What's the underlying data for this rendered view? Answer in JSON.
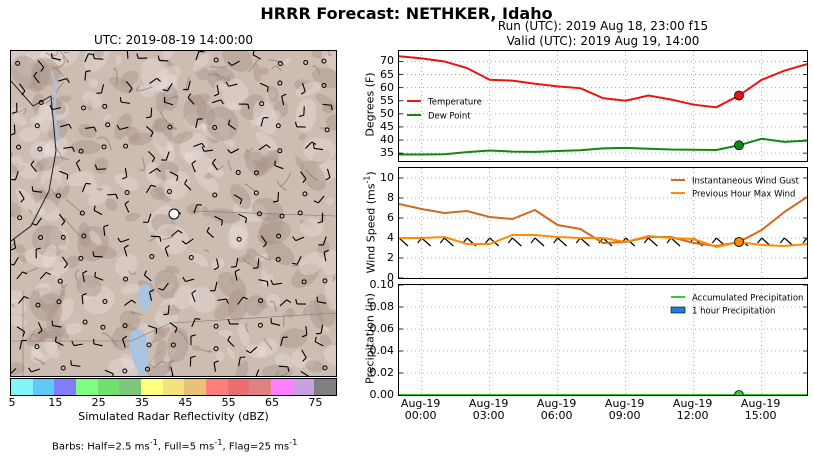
{
  "header": {
    "title": "HRRR Forecast: NETHKER, Idaho",
    "run_line": "Run (UTC): 2019 Aug 18, 23:00 f15",
    "valid_line": "Valid (UTC): 2019 Aug 19, 14:00"
  },
  "map": {
    "time_label": "UTC: 2019-08-19 14:00:00"
  },
  "colorbar": {
    "label": "Simulated Radar Reflectivity (dBZ)",
    "ticks": [
      "5",
      "15",
      "25",
      "35",
      "45",
      "55",
      "65",
      "75"
    ],
    "colors": [
      "#7ff7f7",
      "#5fc8f5",
      "#7f7ff7",
      "#7fff7f",
      "#6fe06f",
      "#7ec87e",
      "#ffff7f",
      "#f7e17f",
      "#e9c279",
      "#ff7f7f",
      "#e96f6f",
      "#e08080",
      "#ff7fff",
      "#c8a0e0",
      "#7f7f7f"
    ]
  },
  "barbs_note": {
    "prefix": "Barbs: Half=2.5 ms",
    "sup1": "-1",
    "mid1": ", Full=5 ms",
    "sup2": "-1",
    "mid2": ", Flag=25 ms",
    "sup3": "-1"
  },
  "chart_data": [
    {
      "type": "line",
      "ylabel": "Degrees (F)",
      "ylim": [
        32,
        74
      ],
      "yticks": [
        35,
        40,
        45,
        50,
        55,
        60,
        65,
        70
      ],
      "x": [
        "2019-08-18 23:00",
        "2019-08-19 00:00",
        "2019-08-19 01:00",
        "2019-08-19 02:00",
        "2019-08-19 03:00",
        "2019-08-19 04:00",
        "2019-08-19 05:00",
        "2019-08-19 06:00",
        "2019-08-19 07:00",
        "2019-08-19 08:00",
        "2019-08-19 09:00",
        "2019-08-19 10:00",
        "2019-08-19 11:00",
        "2019-08-19 12:00",
        "2019-08-19 13:00",
        "2019-08-19 14:00",
        "2019-08-19 15:00",
        "2019-08-19 16:00",
        "2019-08-19 17:00"
      ],
      "series": [
        {
          "name": "Temperature",
          "color": "#ee1111",
          "values": [
            72,
            71.2,
            70,
            67.5,
            63,
            62.7,
            61.5,
            60.5,
            59.8,
            56,
            55,
            57,
            55.5,
            53.5,
            52.5,
            57,
            63,
            66.5,
            69
          ]
        },
        {
          "name": "Dew Point",
          "color": "#118811",
          "values": [
            34.5,
            34.5,
            34.6,
            35.4,
            36,
            35.6,
            35.5,
            35.8,
            36.1,
            36.8,
            37,
            36.7,
            36.4,
            36.3,
            36.2,
            38,
            40.5,
            39.3,
            39.8
          ]
        }
      ],
      "highlight_index": 15,
      "legend": "center-left",
      "grid": true
    },
    {
      "type": "line",
      "ylabel": "Wind Speed (ms",
      "ylabel_sup": "-1",
      "ylabel_end": ")",
      "ylim": [
        0,
        11
      ],
      "yticks": [
        0,
        2,
        4,
        6,
        8,
        10
      ],
      "x": [
        "2019-08-18 23:00",
        "2019-08-19 00:00",
        "2019-08-19 01:00",
        "2019-08-19 02:00",
        "2019-08-19 03:00",
        "2019-08-19 04:00",
        "2019-08-19 05:00",
        "2019-08-19 06:00",
        "2019-08-19 07:00",
        "2019-08-19 08:00",
        "2019-08-19 09:00",
        "2019-08-19 10:00",
        "2019-08-19 11:00",
        "2019-08-19 12:00",
        "2019-08-19 13:00",
        "2019-08-19 14:00",
        "2019-08-19 15:00",
        "2019-08-19 16:00",
        "2019-08-19 17:00"
      ],
      "series": [
        {
          "name": "Instantaneous Wind Gust",
          "color": "#d2691e",
          "values": [
            7.4,
            6.9,
            6.5,
            6.7,
            6.1,
            5.9,
            6.8,
            5.3,
            4.9,
            3.5,
            3.6,
            4.1,
            4.1,
            3.5,
            3.2,
            3.6,
            4.8,
            6.6,
            8.1
          ]
        },
        {
          "name": "Previous Hour Max Wind",
          "color": "#ff8c00",
          "values": [
            4.0,
            4.0,
            4.1,
            3.4,
            3.4,
            4.3,
            4.3,
            4.1,
            4.0,
            4.0,
            3.6,
            4.2,
            4.0,
            3.9,
            3.1,
            3.6,
            3.3,
            3.2,
            3.4
          ]
        }
      ],
      "highlight_index": 15,
      "legend": "top-right",
      "grid": true
    },
    {
      "type": "line",
      "ylabel": "Precipitation (in)",
      "ylim": [
        0,
        0.1
      ],
      "yticks": [
        0.0,
        0.02,
        0.04,
        0.06,
        0.08,
        0.1
      ],
      "ytick_labels": [
        "0.00",
        "0.02",
        "0.04",
        "0.06",
        "0.08",
        "0.10"
      ],
      "x": [
        "2019-08-18 23:00",
        "2019-08-19 00:00",
        "2019-08-19 01:00",
        "2019-08-19 02:00",
        "2019-08-19 03:00",
        "2019-08-19 04:00",
        "2019-08-19 05:00",
        "2019-08-19 06:00",
        "2019-08-19 07:00",
        "2019-08-19 08:00",
        "2019-08-19 09:00",
        "2019-08-19 10:00",
        "2019-08-19 11:00",
        "2019-08-19 12:00",
        "2019-08-19 13:00",
        "2019-08-19 14:00",
        "2019-08-19 15:00",
        "2019-08-19 16:00",
        "2019-08-19 17:00"
      ],
      "series": [
        {
          "name": "Accumulated Precipitation",
          "color": "#33cc33",
          "values": [
            0,
            0,
            0,
            0,
            0,
            0,
            0,
            0,
            0,
            0,
            0,
            0,
            0,
            0,
            0,
            0,
            0,
            0,
            0
          ]
        },
        {
          "name": "1 hour Precipitation",
          "color": "#1e7fe0",
          "values": [
            0,
            0,
            0,
            0,
            0,
            0,
            0,
            0,
            0,
            0,
            0,
            0,
            0,
            0,
            0,
            0,
            0,
            0,
            0
          ]
        }
      ],
      "highlight_index": 15,
      "legend": "top-right",
      "grid": true,
      "xtick_labels": [
        [
          "Aug-19",
          "00:00"
        ],
        [
          "Aug-19",
          "03:00"
        ],
        [
          "Aug-19",
          "06:00"
        ],
        [
          "Aug-19",
          "09:00"
        ],
        [
          "Aug-19",
          "12:00"
        ],
        [
          "Aug-19",
          "15:00"
        ]
      ],
      "xtick_index": [
        1,
        4,
        7,
        10,
        13,
        16
      ]
    }
  ]
}
